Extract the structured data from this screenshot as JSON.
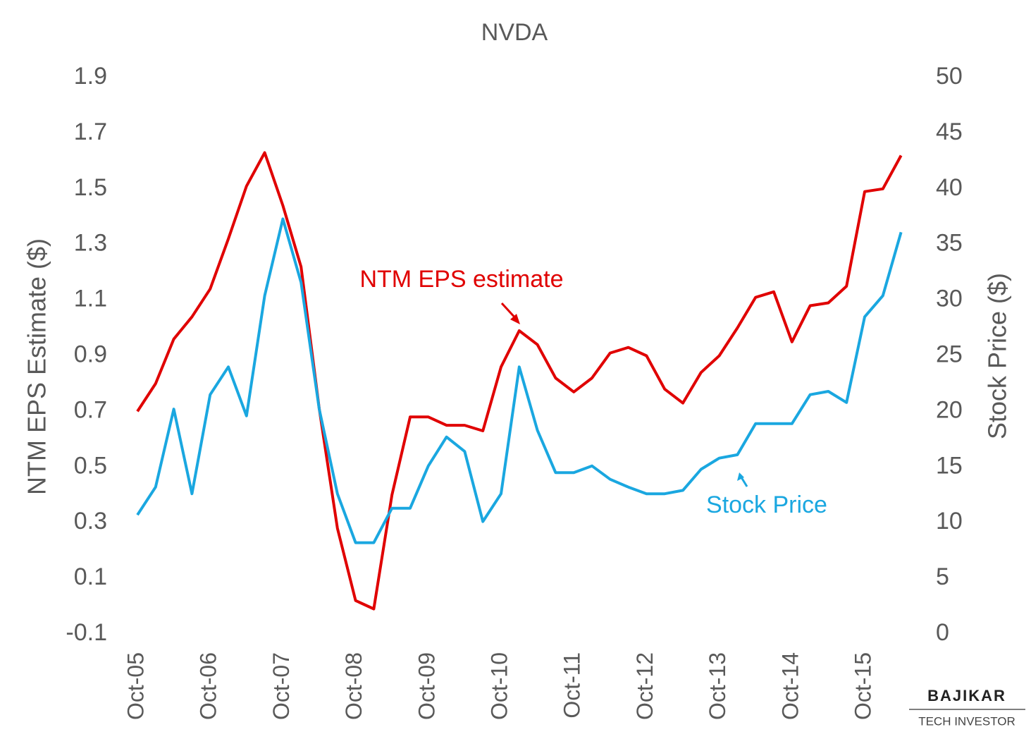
{
  "chart_data": {
    "type": "line",
    "title": "NVDA",
    "y_label": "NTM EPS Estimate ($)",
    "y2_label": "Stock Price ($)",
    "categories": [
      "Oct-05",
      null,
      null,
      null,
      "Oct-06",
      null,
      null,
      null,
      "Oct-07",
      null,
      null,
      null,
      "Oct-08",
      null,
      null,
      null,
      "Oct-09",
      null,
      null,
      null,
      "Oct-10",
      null,
      null,
      null,
      "Oct-11",
      null,
      null,
      null,
      "Oct-12",
      null,
      null,
      null,
      "Oct-13",
      null,
      null,
      null,
      "Oct-14",
      null,
      null,
      null,
      "Oct-15",
      null,
      null
    ],
    "series": [
      {
        "name": "NTM EPS estimate",
        "color": "#e00000",
        "axis": "y",
        "values": [
          0.7,
          0.8,
          0.96,
          1.04,
          1.14,
          1.32,
          1.51,
          1.63,
          1.44,
          1.22,
          0.71,
          0.28,
          0.02,
          -0.01,
          0.4,
          0.68,
          0.68,
          0.65,
          0.65,
          0.63,
          0.86,
          0.99,
          0.94,
          0.82,
          0.77,
          0.82,
          0.91,
          0.93,
          0.9,
          0.78,
          0.73,
          0.84,
          0.9,
          1.0,
          1.11,
          1.13,
          0.95,
          1.08,
          1.09,
          1.15,
          1.49,
          1.5,
          1.62
        ]
      },
      {
        "name": "Stock Price",
        "color": "#1aa7e0",
        "axis": "y2",
        "values": [
          10.7,
          13.2,
          20.2,
          12.6,
          21.5,
          24.0,
          19.6,
          30.4,
          37.3,
          31.6,
          20.2,
          12.6,
          8.2,
          8.2,
          11.3,
          11.3,
          15.1,
          17.7,
          16.4,
          10.1,
          12.6,
          24.0,
          18.3,
          14.5,
          14.5,
          15.1,
          13.9,
          13.2,
          12.6,
          12.6,
          12.9,
          14.8,
          15.8,
          16.1,
          18.9,
          18.9,
          18.9,
          21.5,
          21.8,
          20.8,
          28.5,
          30.4,
          36.1
        ]
      }
    ],
    "ylim": [
      -0.1,
      1.9
    ],
    "yticks": [
      -0.1,
      0.1,
      0.3,
      0.5,
      0.7,
      0.9,
      1.1,
      1.3,
      1.5,
      1.7,
      1.9
    ],
    "y2lim": [
      0,
      50
    ],
    "y2ticks": [
      0,
      5,
      10,
      15,
      20,
      25,
      30,
      35,
      40,
      45,
      50
    ],
    "grid": false,
    "branding": {
      "name": "BAJIKAR",
      "tagline": "TECH INVESTOR"
    }
  }
}
